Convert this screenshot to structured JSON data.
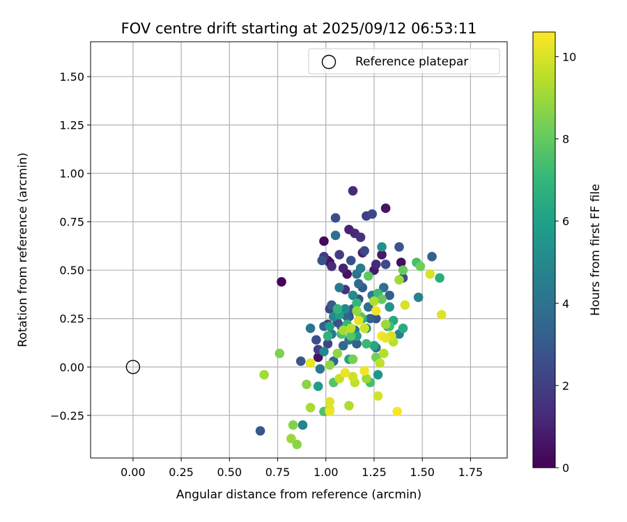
{
  "chart_data": {
    "type": "scatter",
    "title": "FOV centre drift starting at 2025/09/12 06:53:11",
    "xlabel": "Angular distance from reference (arcmin)",
    "ylabel": "Rotation from reference (arcmin)",
    "xlim": [
      -0.22,
      1.94
    ],
    "ylim": [
      -0.47,
      1.68
    ],
    "x_ticks": [
      0.0,
      0.25,
      0.5,
      0.75,
      1.0,
      1.25,
      1.5,
      1.75
    ],
    "x_tick_labels": [
      "0.00",
      "0.25",
      "0.50",
      "0.75",
      "1.00",
      "1.25",
      "1.50",
      "1.75"
    ],
    "y_ticks": [
      -0.25,
      0.0,
      0.25,
      0.5,
      0.75,
      1.0,
      1.25,
      1.5
    ],
    "y_tick_labels": [
      "−0.25",
      "0.00",
      "0.25",
      "0.50",
      "0.75",
      "1.00",
      "1.25",
      "1.50"
    ],
    "grid": true,
    "legend": {
      "placement": "top-right",
      "entries": [
        "Reference platepar"
      ]
    },
    "reference_point": {
      "x": 0.0,
      "y": 0.0
    },
    "colorbar": {
      "label": "Hours from first FF file",
      "colormap": "viridis",
      "range": [
        0,
        10.6
      ],
      "ticks": [
        0,
        2,
        4,
        6,
        8,
        10
      ],
      "tick_labels": [
        "0",
        "2",
        "4",
        "6",
        "8",
        "10"
      ]
    },
    "points": [
      [
        0.77,
        0.44,
        0.1
      ],
      [
        0.99,
        0.65,
        0.2
      ],
      [
        1.01,
        0.55,
        0.3
      ],
      [
        1.02,
        0.54,
        0.5
      ],
      [
        1.11,
        0.48,
        0.5
      ],
      [
        1.31,
        0.82,
        0.6
      ],
      [
        1.29,
        0.58,
        0.7
      ],
      [
        1.19,
        0.59,
        0.8
      ],
      [
        1.25,
        0.5,
        0.8
      ],
      [
        1.39,
        0.54,
        0.4
      ],
      [
        0.96,
        0.05,
        0.5
      ],
      [
        1.12,
        0.71,
        1.0
      ],
      [
        1.09,
        0.51,
        1.0
      ],
      [
        1.15,
        0.69,
        1.2
      ],
      [
        1.14,
        0.91,
        1.3
      ],
      [
        1.26,
        0.53,
        1.3
      ],
      [
        1.03,
        0.52,
        1.4
      ],
      [
        1.18,
        0.67,
        1.6
      ],
      [
        0.99,
        0.57,
        1.8
      ],
      [
        1.07,
        0.58,
        1.9
      ],
      [
        0.96,
        0.09,
        2.0
      ],
      [
        1.01,
        0.22,
        1.7
      ],
      [
        1.02,
        0.3,
        2.2
      ],
      [
        1.1,
        0.4,
        1.5
      ],
      [
        1.21,
        0.78,
        2.0
      ],
      [
        1.24,
        0.79,
        2.3
      ],
      [
        1.05,
        0.77,
        2.5
      ],
      [
        1.13,
        0.55,
        2.6
      ],
      [
        1.2,
        0.6,
        2.3
      ],
      [
        0.98,
        0.55,
        2.7
      ],
      [
        0.87,
        0.03,
        2.8
      ],
      [
        0.95,
        0.14,
        2.6
      ],
      [
        1.01,
        0.12,
        2.2
      ],
      [
        1.06,
        0.23,
        2.4
      ],
      [
        1.12,
        0.26,
        2.5
      ],
      [
        1.17,
        0.35,
        2.6
      ],
      [
        1.26,
        0.25,
        2.7
      ],
      [
        1.31,
        0.53,
        2.4
      ],
      [
        1.4,
        0.46,
        2.5
      ],
      [
        1.38,
        0.62,
        2.8
      ],
      [
        0.66,
        -0.33,
        2.9
      ],
      [
        1.03,
        0.32,
        3.0
      ],
      [
        1.08,
        0.21,
        2.9
      ],
      [
        1.14,
        0.3,
        3.1
      ],
      [
        1.19,
        0.41,
        3.0
      ],
      [
        1.16,
        0.12,
        3.2
      ],
      [
        1.23,
        0.25,
        3.3
      ],
      [
        1.33,
        0.37,
        3.2
      ],
      [
        1.55,
        0.57,
        3.3
      ],
      [
        0.99,
        0.21,
        3.3
      ],
      [
        1.04,
        0.03,
        3.5
      ],
      [
        1.09,
        0.11,
        3.6
      ],
      [
        1.11,
        0.26,
        3.4
      ],
      [
        1.15,
        0.19,
        3.7
      ],
      [
        1.17,
        0.43,
        3.6
      ],
      [
        1.22,
        0.31,
        3.8
      ],
      [
        1.26,
        0.1,
        3.8
      ],
      [
        1.3,
        0.41,
        3.9
      ],
      [
        1.05,
        0.68,
        3.9
      ],
      [
        1.16,
        0.48,
        4.0
      ],
      [
        0.92,
        0.2,
        4.1
      ],
      [
        0.97,
        -0.01,
        4.2
      ],
      [
        1.03,
        0.17,
        4.1
      ],
      [
        1.07,
        0.41,
        4.3
      ],
      [
        1.12,
        0.14,
        4.2
      ],
      [
        1.18,
        0.51,
        4.4
      ],
      [
        1.24,
        0.37,
        4.4
      ],
      [
        1.32,
        0.21,
        4.6
      ],
      [
        1.38,
        0.17,
        4.6
      ],
      [
        1.48,
        0.36,
        4.7
      ],
      [
        0.88,
        -0.3,
        4.8
      ],
      [
        0.99,
        0.08,
        4.9
      ],
      [
        1.04,
        0.26,
        5.0
      ],
      [
        1.1,
        0.3,
        5.0
      ],
      [
        1.14,
        0.37,
        5.1
      ],
      [
        1.21,
        0.2,
        5.2
      ],
      [
        1.29,
        0.62,
        5.3
      ],
      [
        1.33,
        0.31,
        5.4
      ],
      [
        1.16,
        0.16,
        5.5
      ],
      [
        1.27,
        -0.04,
        5.6
      ],
      [
        0.96,
        -0.1,
        5.8
      ],
      [
        1.02,
        0.21,
        5.9
      ],
      [
        1.07,
        0.27,
        6.0
      ],
      [
        1.12,
        0.04,
        6.1
      ],
      [
        1.19,
        0.25,
        6.2
      ],
      [
        1.25,
        0.11,
        6.3
      ],
      [
        1.35,
        0.24,
        6.4
      ],
      [
        1.4,
        0.2,
        6.5
      ],
      [
        1.59,
        0.46,
        6.6
      ],
      [
        1.16,
        0.16,
        6.0
      ],
      [
        1.01,
        0.16,
        6.8
      ],
      [
        1.06,
        0.3,
        6.9
      ],
      [
        1.11,
        0.22,
        7.0
      ],
      [
        1.16,
        0.33,
        7.0
      ],
      [
        1.21,
        0.12,
        7.1
      ],
      [
        1.27,
        0.38,
        7.2
      ],
      [
        1.33,
        0.21,
        7.3
      ],
      [
        1.47,
        0.54,
        7.4
      ],
      [
        1.23,
        -0.08,
        7.4
      ],
      [
        1.08,
        0.17,
        7.5
      ],
      [
        0.99,
        -0.23,
        7.6
      ],
      [
        1.04,
        -0.08,
        7.7
      ],
      [
        1.13,
        0.16,
        7.8
      ],
      [
        1.18,
        0.26,
        7.9
      ],
      [
        1.22,
        0.47,
        7.9
      ],
      [
        1.29,
        0.35,
        8.0
      ],
      [
        1.4,
        0.5,
        8.1
      ],
      [
        1.49,
        0.52,
        8.2
      ],
      [
        1.26,
        0.05,
        8.3
      ],
      [
        1.14,
        0.04,
        8.4
      ],
      [
        0.76,
        0.07,
        8.5
      ],
      [
        0.83,
        -0.3,
        8.6
      ],
      [
        0.9,
        -0.09,
        8.7
      ],
      [
        1.02,
        0.01,
        8.8
      ],
      [
        1.06,
        0.07,
        8.8
      ],
      [
        1.16,
        0.29,
        8.9
      ],
      [
        1.21,
        -0.06,
        9.0
      ],
      [
        1.31,
        0.22,
        9.0
      ],
      [
        1.38,
        0.45,
        9.1
      ],
      [
        1.09,
        0.19,
        9.2
      ],
      [
        0.68,
        -0.04,
        9.1
      ],
      [
        0.82,
        -0.37,
        9.0
      ],
      [
        0.85,
        -0.4,
        8.7
      ],
      [
        0.92,
        -0.21,
        9.2
      ],
      [
        1.12,
        -0.2,
        9.3
      ],
      [
        1.25,
        0.34,
        9.3
      ],
      [
        1.3,
        0.07,
        9.4
      ],
      [
        1.35,
        0.13,
        9.5
      ],
      [
        1.13,
        0.2,
        9.5
      ],
      [
        1.15,
        -0.08,
        9.6
      ],
      [
        1.02,
        -0.22,
        9.7
      ],
      [
        1.07,
        -0.06,
        9.7
      ],
      [
        1.14,
        -0.05,
        9.8
      ],
      [
        1.2,
        0.2,
        9.8
      ],
      [
        1.27,
        -0.15,
        9.9
      ],
      [
        1.34,
        0.16,
        9.9
      ],
      [
        1.41,
        0.32,
        10.0
      ],
      [
        1.54,
        0.48,
        10.0
      ],
      [
        1.6,
        0.27,
        10.1
      ],
      [
        1.02,
        -0.18,
        10.1
      ],
      [
        0.92,
        0.02,
        10.2
      ],
      [
        1.02,
        -0.23,
        10.3
      ],
      [
        1.1,
        -0.03,
        10.3
      ],
      [
        1.2,
        -0.02,
        10.4
      ],
      [
        1.26,
        0.29,
        10.4
      ],
      [
        1.29,
        0.16,
        10.5
      ],
      [
        1.37,
        -0.23,
        10.5
      ],
      [
        1.31,
        0.15,
        10.2
      ],
      [
        1.17,
        0.24,
        10.2
      ],
      [
        1.28,
        0.02,
        9.6
      ]
    ]
  }
}
